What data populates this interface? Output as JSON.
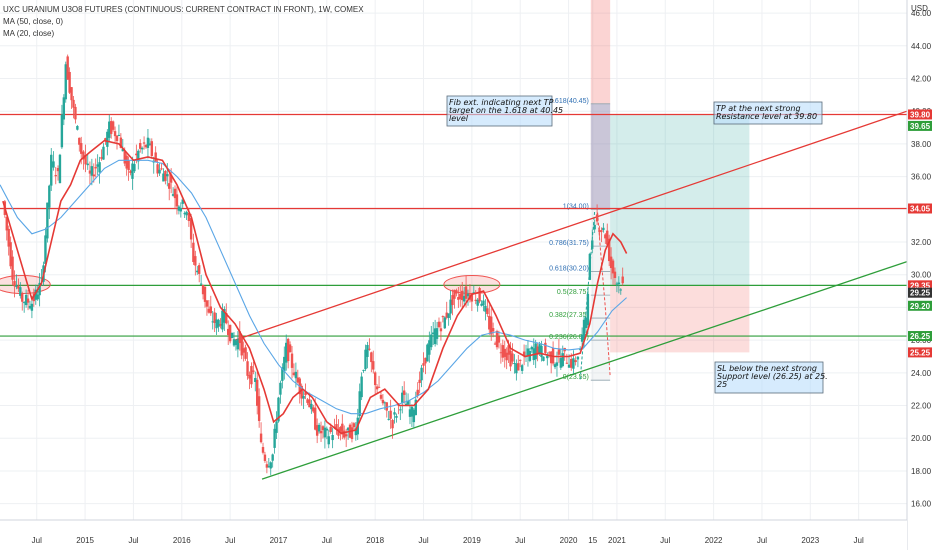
{
  "header": {
    "title": "UXC URANIUM U3O8 FUTURES (CONTINUOUS: CURRENT CONTRACT IN FRONT), 1W, COMEX",
    "ma1": "MA (50, close, 0)",
    "ma2": "MA (20, close)",
    "currency": "USD"
  },
  "colors": {
    "red": "#e53935",
    "green": "#2e9e3a",
    "ma_blue": "#5aa6e6",
    "ma_red": "#e53935",
    "candle_up": "#26a69a",
    "candle_down": "#ef5350",
    "price_blue": "#5b8ed8"
  },
  "chart_data": {
    "type": "candlestick",
    "x_labels": [
      "Jul",
      "2015",
      "Jul",
      "2016",
      "Jul",
      "2017",
      "Jul",
      "2018",
      "Jul",
      "2019",
      "Jul",
      "2020",
      "15",
      "2021",
      "Jul",
      "2022",
      "Jul",
      "2023",
      "Jul"
    ],
    "x_label_dates": [
      2014.5,
      2015.0,
      2015.5,
      2016.0,
      2016.5,
      2017.0,
      2017.5,
      2018.0,
      2018.5,
      2019.0,
      2019.5,
      2020.0,
      2020.25,
      2020.5,
      2021.0,
      2021.5,
      2022.0,
      2022.5,
      2023.0
    ],
    "y_ticks": [
      "16.00",
      "18.00",
      "20.00",
      "22.00",
      "24.00",
      "26.00",
      "28.00",
      "30.00",
      "32.00",
      "34.00",
      "36.00",
      "38.00",
      "40.00",
      "42.00",
      "44.00",
      "46.00"
    ],
    "ylim": [
      15.0,
      46.8
    ],
    "xlim": [
      2014.12,
      2023.5
    ],
    "close_series": [
      [
        2014.15,
        34.5
      ],
      [
        2014.25,
        30.0
      ],
      [
        2014.35,
        28.5
      ],
      [
        2014.45,
        28.3
      ],
      [
        2014.55,
        29.5
      ],
      [
        2014.65,
        37.0
      ],
      [
        2014.72,
        36.0
      ],
      [
        2014.8,
        43.0
      ],
      [
        2014.88,
        40.0
      ],
      [
        2014.96,
        37.5
      ],
      [
        2015.05,
        36.0
      ],
      [
        2015.15,
        37.0
      ],
      [
        2015.25,
        39.0
      ],
      [
        2015.35,
        38.5
      ],
      [
        2015.45,
        36.0
      ],
      [
        2015.55,
        37.5
      ],
      [
        2015.65,
        38.0
      ],
      [
        2015.75,
        36.5
      ],
      [
        2015.85,
        36.0
      ],
      [
        2015.95,
        34.5
      ],
      [
        2016.05,
        34.0
      ],
      [
        2016.12,
        31.0
      ],
      [
        2016.2,
        29.5
      ],
      [
        2016.28,
        27.5
      ],
      [
        2016.36,
        27.0
      ],
      [
        2016.44,
        27.5
      ],
      [
        2016.52,
        26.0
      ],
      [
        2016.6,
        26.0
      ],
      [
        2016.68,
        24.0
      ],
      [
        2016.76,
        23.5
      ],
      [
        2016.82,
        19.5
      ],
      [
        2016.88,
        18.5
      ],
      [
        2016.94,
        19.0
      ],
      [
        2017.0,
        22.5
      ],
      [
        2017.08,
        25.5
      ],
      [
        2017.14,
        24.5
      ],
      [
        2017.22,
        23.0
      ],
      [
        2017.3,
        22.5
      ],
      [
        2017.4,
        20.5
      ],
      [
        2017.5,
        20.2
      ],
      [
        2017.6,
        20.5
      ],
      [
        2017.7,
        20.2
      ],
      [
        2017.8,
        20.5
      ],
      [
        2017.86,
        24.0
      ],
      [
        2017.92,
        25.5
      ],
      [
        2018.0,
        23.5
      ],
      [
        2018.08,
        22.0
      ],
      [
        2018.18,
        21.0
      ],
      [
        2018.28,
        22.5
      ],
      [
        2018.38,
        21.5
      ],
      [
        2018.46,
        23.5
      ],
      [
        2018.54,
        25.5
      ],
      [
        2018.62,
        26.5
      ],
      [
        2018.72,
        27.3
      ],
      [
        2018.8,
        28.5
      ],
      [
        2018.9,
        28.8
      ],
      [
        2019.0,
        28.8
      ],
      [
        2019.1,
        28.5
      ],
      [
        2019.2,
        26.5
      ],
      [
        2019.3,
        25.5
      ],
      [
        2019.38,
        25.0
      ],
      [
        2019.46,
        24.3
      ],
      [
        2019.56,
        25.0
      ],
      [
        2019.66,
        25.5
      ],
      [
        2019.76,
        25.2
      ],
      [
        2019.86,
        24.8
      ],
      [
        2019.96,
        25.0
      ],
      [
        2020.05,
        24.5
      ],
      [
        2020.12,
        25.5
      ],
      [
        2020.18,
        27.5
      ],
      [
        2020.22,
        31.0
      ],
      [
        2020.27,
        33.5
      ],
      [
        2020.32,
        33.0
      ],
      [
        2020.38,
        32.5
      ],
      [
        2020.44,
        30.5
      ],
      [
        2020.5,
        29.6
      ],
      [
        2020.56,
        29.3
      ]
    ],
    "sma20_series": [
      [
        2014.15,
        34.5
      ],
      [
        2014.3,
        31.5
      ],
      [
        2014.45,
        28.5
      ],
      [
        2014.55,
        29.5
      ],
      [
        2014.65,
        32.0
      ],
      [
        2014.75,
        34.5
      ],
      [
        2014.85,
        35.5
      ],
      [
        2014.95,
        37.0
      ],
      [
        2015.05,
        37.5
      ],
      [
        2015.2,
        38.2
      ],
      [
        2015.35,
        38.0
      ],
      [
        2015.5,
        37.0
      ],
      [
        2015.65,
        37.2
      ],
      [
        2015.8,
        37.0
      ],
      [
        2015.95,
        35.5
      ],
      [
        2016.1,
        33.5
      ],
      [
        2016.25,
        30.0
      ],
      [
        2016.4,
        28.0
      ],
      [
        2016.55,
        27.0
      ],
      [
        2016.7,
        25.5
      ],
      [
        2016.85,
        23.0
      ],
      [
        2016.95,
        21.0
      ],
      [
        2017.05,
        21.5
      ],
      [
        2017.15,
        22.5
      ],
      [
        2017.25,
        23.0
      ],
      [
        2017.35,
        22.5
      ],
      [
        2017.5,
        21.0
      ],
      [
        2017.65,
        20.3
      ],
      [
        2017.8,
        20.5
      ],
      [
        2017.95,
        22.5
      ],
      [
        2018.1,
        23.0
      ],
      [
        2018.25,
        22.0
      ],
      [
        2018.4,
        22.0
      ],
      [
        2018.55,
        23.0
      ],
      [
        2018.7,
        25.5
      ],
      [
        2018.85,
        27.5
      ],
      [
        2019.0,
        28.8
      ],
      [
        2019.12,
        29.0
      ],
      [
        2019.25,
        27.5
      ],
      [
        2019.4,
        25.5
      ],
      [
        2019.55,
        25.0
      ],
      [
        2019.7,
        25.2
      ],
      [
        2019.85,
        25.0
      ],
      [
        2020.0,
        25.0
      ],
      [
        2020.12,
        25.2
      ],
      [
        2020.22,
        27.0
      ],
      [
        2020.3,
        29.5
      ],
      [
        2020.38,
        31.5
      ],
      [
        2020.46,
        32.5
      ],
      [
        2020.54,
        32.0
      ],
      [
        2020.6,
        31.3
      ]
    ],
    "sma50_series": [
      [
        2014.12,
        35.5
      ],
      [
        2014.3,
        33.5
      ],
      [
        2014.45,
        32.5
      ],
      [
        2014.6,
        32.8
      ],
      [
        2014.75,
        33.5
      ],
      [
        2014.9,
        34.5
      ],
      [
        2015.05,
        35.5
      ],
      [
        2015.2,
        36.5
      ],
      [
        2015.35,
        37.0
      ],
      [
        2015.5,
        37.0
      ],
      [
        2015.65,
        37.0
      ],
      [
        2015.8,
        36.8
      ],
      [
        2015.95,
        36.0
      ],
      [
        2016.1,
        35.0
      ],
      [
        2016.25,
        33.5
      ],
      [
        2016.4,
        31.5
      ],
      [
        2016.55,
        29.5
      ],
      [
        2016.7,
        27.5
      ],
      [
        2016.85,
        25.8
      ],
      [
        2017.0,
        24.5
      ],
      [
        2017.15,
        23.5
      ],
      [
        2017.3,
        22.8
      ],
      [
        2017.45,
        22.3
      ],
      [
        2017.6,
        21.8
      ],
      [
        2017.75,
        21.5
      ],
      [
        2017.9,
        21.5
      ],
      [
        2018.05,
        21.8
      ],
      [
        2018.2,
        22.0
      ],
      [
        2018.35,
        22.3
      ],
      [
        2018.5,
        22.8
      ],
      [
        2018.65,
        23.5
      ],
      [
        2018.8,
        24.5
      ],
      [
        2018.95,
        25.5
      ],
      [
        2019.1,
        26.3
      ],
      [
        2019.25,
        26.5
      ],
      [
        2019.4,
        26.3
      ],
      [
        2019.55,
        26.0
      ],
      [
        2019.7,
        25.8
      ],
      [
        2019.85,
        25.5
      ],
      [
        2020.0,
        25.4
      ],
      [
        2020.15,
        25.5
      ],
      [
        2020.3,
        26.5
      ],
      [
        2020.45,
        27.8
      ],
      [
        2020.6,
        28.6
      ]
    ],
    "horizontal_lines": [
      {
        "price": 39.8,
        "color": "red"
      },
      {
        "price": 34.05,
        "color": "red"
      },
      {
        "price": 29.35,
        "color": "green"
      },
      {
        "price": 26.25,
        "color": "green"
      }
    ],
    "trendlines": [
      {
        "from": [
          2016.55,
          26.0
        ],
        "to": [
          2023.5,
          40.0
        ],
        "color": "red"
      },
      {
        "from": [
          2016.83,
          17.5
        ],
        "to": [
          2023.5,
          30.8
        ],
        "color": "green"
      }
    ],
    "ellipses": [
      {
        "center": [
          2014.35,
          29.4
        ]
      },
      {
        "center": [
          2019.0,
          29.4
        ]
      }
    ],
    "fib_levels": [
      {
        "label": "1.618(40.45)",
        "price": 40.45
      },
      {
        "label": "1(34.00)",
        "price": 34.0
      },
      {
        "label": "0.786(31.75)",
        "price": 31.75
      },
      {
        "label": "0.618(30.20)",
        "price": 30.2
      },
      {
        "label": "0.5(28.75)",
        "price": 28.75
      },
      {
        "label": "0.382(27.35)",
        "price": 27.35
      },
      {
        "label": "0.236(26.00)",
        "price": 26.0
      },
      {
        "label": "0(23.55)",
        "price": 23.55
      }
    ],
    "price_labels": [
      {
        "text": "39.80",
        "price": 39.8,
        "color": "#e53935"
      },
      {
        "text": "39.65",
        "price": 39.1,
        "color": "#2e9e3a"
      },
      {
        "text": "34.05",
        "price": 34.05,
        "color": "#e53935"
      },
      {
        "text": "29.35",
        "price": 29.35,
        "color": "#e53935"
      },
      {
        "text": "29.25",
        "price": 28.9,
        "color": "#333333"
      },
      {
        "text": "29.20",
        "price": 28.1,
        "color": "#2e9e3a"
      },
      {
        "text": "26.25",
        "price": 26.25,
        "color": "#2e9e3a"
      },
      {
        "text": "25.25",
        "price": 25.25,
        "color": "#e53935"
      }
    ],
    "annotations": [
      {
        "lines": [
          "Fib ext. indicating next TP",
          "target on the 1.618 at 40.45",
          "level"
        ]
      },
      {
        "lines": [
          "TP at the next strong",
          "Resistance level at 39.80"
        ]
      },
      {
        "lines": [
          "SL below the next strong",
          "Support level (26.25) at 25.",
          "25"
        ]
      }
    ],
    "position": {
      "entry": 29.35,
      "target": 39.8,
      "stop": 25.25
    }
  }
}
